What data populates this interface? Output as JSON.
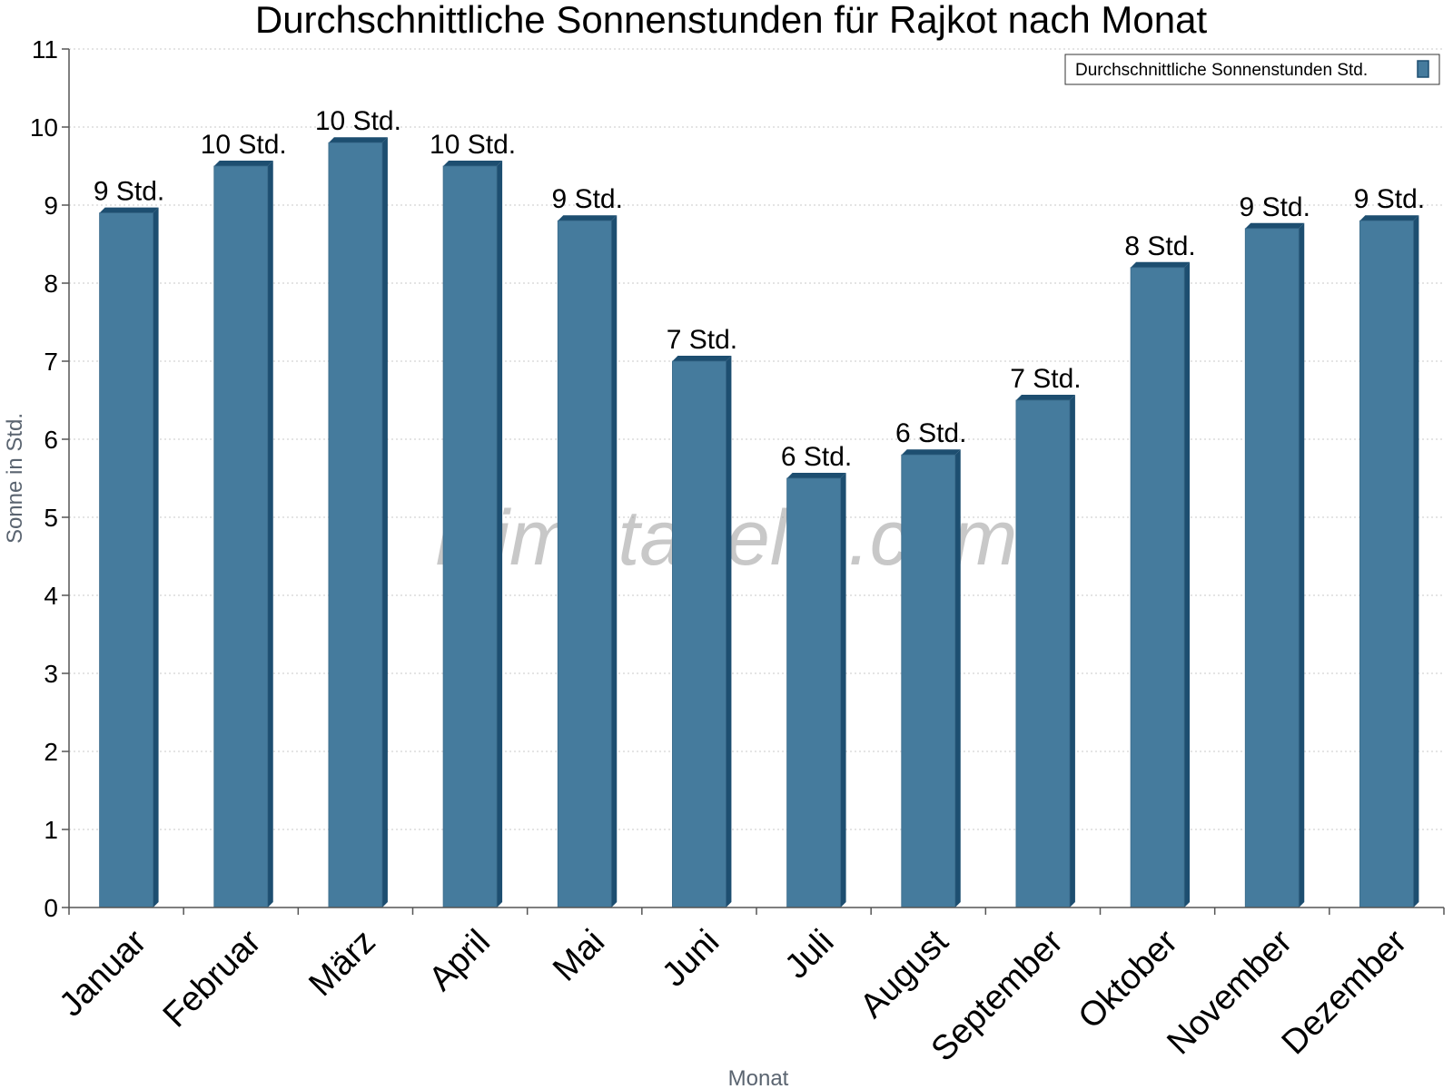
{
  "colors": {
    "bar_front": "#457b9d",
    "bar_side": "#1d4e70",
    "bar_top": "#1d4e70",
    "grid": "#c8c8c8",
    "axis": "#555555"
  },
  "watermark": "klimatabelle.com",
  "chart_data": {
    "type": "bar",
    "title": "Durchschnittliche Sonnenstunden für Rajkot nach Monat",
    "xlabel": "Monat",
    "ylabel": "Sonne in Std.",
    "ylim": [
      0,
      11
    ],
    "yticks": [
      "0",
      "1",
      "2",
      "3",
      "4",
      "5",
      "6",
      "7",
      "8",
      "9",
      "10",
      "11"
    ],
    "grid": true,
    "legend_position": "top-right",
    "categories": [
      "Januar",
      "Februar",
      "März",
      "April",
      "Mai",
      "Juni",
      "Juli",
      "August",
      "September",
      "Oktober",
      "November",
      "Dezember"
    ],
    "series": [
      {
        "name": "Durchschnittliche Sonnenstunden Std.",
        "values": [
          8.9,
          9.5,
          9.8,
          9.5,
          8.8,
          7.0,
          5.5,
          5.8,
          6.5,
          8.2,
          8.7,
          8.8
        ],
        "data_labels": [
          "9 Std.",
          "10 Std.",
          "10 Std.",
          "10 Std.",
          "9 Std.",
          "7 Std.",
          "6 Std.",
          "6 Std.",
          "7 Std.",
          "8 Std.",
          "9 Std.",
          "9 Std."
        ]
      }
    ]
  }
}
